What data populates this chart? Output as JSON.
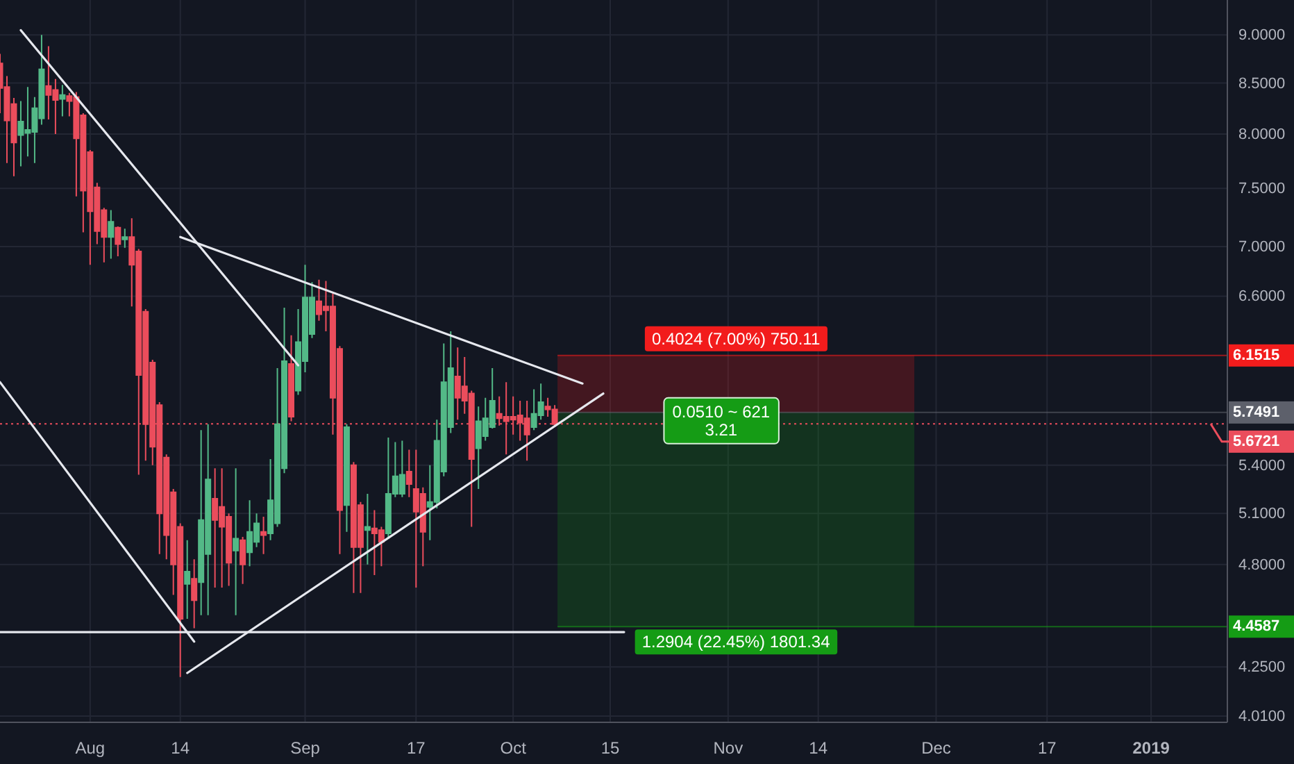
{
  "chart_data": {
    "type": "candlestick",
    "log": true,
    "grid": true,
    "xlim": [
      "2018-07-19",
      "2019-01-12"
    ],
    "xticks": [
      {
        "value": "2018-08-01",
        "label": "Aug"
      },
      {
        "value": "2018-08-14",
        "label": "14"
      },
      {
        "value": "2018-09-01",
        "label": "Sep"
      },
      {
        "value": "2018-09-17",
        "label": "17"
      },
      {
        "value": "2018-10-01",
        "label": "Oct"
      },
      {
        "value": "2018-10-15",
        "label": "15"
      },
      {
        "value": "2018-11-01",
        "label": "Nov"
      },
      {
        "value": "2018-11-14",
        "label": "14"
      },
      {
        "value": "2018-12-01",
        "label": "Dec"
      },
      {
        "value": "2018-12-17",
        "label": "17"
      },
      {
        "value": "2019-01-01",
        "label": "2019"
      }
    ],
    "ylim": [
      3.98,
      9.38
    ],
    "yticks": [
      {
        "value": 4.01,
        "label": "4.0100"
      },
      {
        "value": 4.25,
        "label": "4.2500"
      },
      {
        "value": 4.8,
        "label": "4.8000"
      },
      {
        "value": 5.1,
        "label": "5.1000"
      },
      {
        "value": 5.4,
        "label": "5.4000"
      },
      {
        "value": 6.6,
        "label": "6.6000"
      },
      {
        "value": 7,
        "label": "7.0000"
      },
      {
        "value": 7.5,
        "label": "7.5000"
      },
      {
        "value": 8,
        "label": "8.0000"
      },
      {
        "value": 8.5,
        "label": "8.5000"
      },
      {
        "value": 9,
        "label": "9.0000"
      }
    ],
    "series": [
      {
        "x": [
          "2018-07-19",
          "2018-07-20",
          "2018-07-21",
          "2018-07-22",
          "2018-07-23",
          "2018-07-24",
          "2018-07-25",
          "2018-07-26",
          "2018-07-27",
          "2018-07-28",
          "2018-07-29",
          "2018-07-30",
          "2018-07-31",
          "2018-08-01",
          "2018-08-02",
          "2018-08-03",
          "2018-08-04",
          "2018-08-05",
          "2018-08-06",
          "2018-08-07",
          "2018-08-08",
          "2018-08-09",
          "2018-08-10",
          "2018-08-11",
          "2018-08-12",
          "2018-08-13",
          "2018-08-14",
          "2018-08-15",
          "2018-08-16",
          "2018-08-17",
          "2018-08-18",
          "2018-08-19",
          "2018-08-20",
          "2018-08-21",
          "2018-08-22",
          "2018-08-23",
          "2018-08-24",
          "2018-08-25",
          "2018-08-26",
          "2018-08-27",
          "2018-08-28",
          "2018-08-29",
          "2018-08-30",
          "2018-08-31",
          "2018-09-01",
          "2018-09-02",
          "2018-09-03",
          "2018-09-04",
          "2018-09-05",
          "2018-09-06",
          "2018-09-07",
          "2018-09-08",
          "2018-09-09",
          "2018-09-10",
          "2018-09-11",
          "2018-09-12",
          "2018-09-13",
          "2018-09-14",
          "2018-09-15",
          "2018-09-16",
          "2018-09-17",
          "2018-09-18",
          "2018-09-19",
          "2018-09-20",
          "2018-09-21",
          "2018-09-22",
          "2018-09-23",
          "2018-09-24",
          "2018-09-25",
          "2018-09-26",
          "2018-09-27",
          "2018-09-28",
          "2018-09-29",
          "2018-09-30",
          "2018-10-01",
          "2018-10-02",
          "2018-10-03",
          "2018-10-04",
          "2018-10-05",
          "2018-10-06",
          "2018-10-07"
        ],
        "ohlc": [
          [
            8.7,
            8.8,
            8.2,
            8.45
          ],
          [
            8.46,
            8.57,
            7.73,
            8.13
          ],
          [
            8.29,
            8.35,
            7.61,
            7.92
          ],
          [
            7.99,
            8.32,
            7.7,
            8.12
          ],
          [
            8.01,
            8.46,
            7.79,
            8.04
          ],
          [
            8.02,
            8.36,
            7.73,
            8.25
          ],
          [
            8.15,
            9.0,
            8.09,
            8.64
          ],
          [
            8.47,
            8.88,
            8.14,
            8.38
          ],
          [
            8.43,
            8.54,
            8.0,
            8.33
          ],
          [
            8.34,
            8.48,
            8.17,
            8.38
          ],
          [
            8.37,
            8.4,
            8.17,
            8.32
          ],
          [
            8.36,
            8.41,
            7.43,
            7.96
          ],
          [
            8.18,
            8.2,
            7.12,
            7.48
          ],
          [
            7.83,
            7.85,
            6.85,
            7.3
          ],
          [
            7.51,
            7.55,
            7.02,
            7.13
          ],
          [
            7.31,
            7.33,
            6.87,
            7.08
          ],
          [
            7.08,
            7.31,
            6.9,
            7.21
          ],
          [
            7.16,
            7.17,
            6.92,
            7.02
          ],
          [
            7.06,
            7.15,
            6.99,
            7.08
          ],
          [
            7.08,
            7.24,
            6.52,
            6.85
          ],
          [
            6.96,
            6.98,
            5.34,
            6.01
          ],
          [
            6.48,
            6.5,
            5.43,
            5.67
          ],
          [
            6.1,
            6.12,
            5.4,
            5.52
          ],
          [
            5.8,
            5.82,
            4.86,
            5.1
          ],
          [
            5.45,
            5.47,
            4.83,
            4.97
          ],
          [
            5.23,
            5.25,
            4.63,
            4.8
          ],
          [
            5.02,
            5.04,
            4.2,
            4.5
          ],
          [
            4.69,
            4.94,
            4.5,
            4.76
          ],
          [
            4.72,
            4.83,
            4.45,
            4.6
          ],
          [
            4.7,
            5.63,
            4.52,
            5.06
          ],
          [
            4.86,
            5.67,
            4.52,
            5.31
          ],
          [
            5.19,
            5.38,
            4.67,
            5.06
          ],
          [
            5.14,
            5.38,
            4.67,
            5.02
          ],
          [
            5.08,
            5.1,
            4.68,
            4.81
          ],
          [
            4.88,
            5.38,
            4.52,
            4.95
          ],
          [
            4.94,
            4.96,
            4.69,
            4.8
          ],
          [
            4.87,
            5.18,
            4.79,
            4.99
          ],
          [
            4.93,
            5.1,
            4.9,
            5.04
          ],
          [
            4.99,
            5.08,
            4.86,
            4.97
          ],
          [
            4.98,
            5.44,
            4.94,
            5.18
          ],
          [
            5.04,
            6.06,
            5.02,
            5.67
          ],
          [
            5.38,
            6.51,
            5.35,
            6.11
          ],
          [
            6.09,
            6.3,
            5.69,
            5.72
          ],
          [
            5.9,
            6.5,
            5.87,
            6.25
          ],
          [
            6.11,
            6.85,
            6.03,
            6.59
          ],
          [
            6.31,
            6.71,
            6.28,
            6.59
          ],
          [
            6.56,
            6.73,
            6.41,
            6.46
          ],
          [
            6.52,
            6.72,
            6.33,
            6.49
          ],
          [
            6.52,
            6.62,
            5.6,
            5.85
          ],
          [
            6.2,
            6.22,
            4.86,
            5.12
          ],
          [
            5.15,
            5.67,
            4.99,
            5.65
          ],
          [
            5.4,
            5.42,
            4.64,
            4.9
          ],
          [
            5.15,
            5.17,
            4.64,
            4.9
          ],
          [
            5.0,
            5.22,
            4.8,
            5.02
          ],
          [
            5.01,
            5.12,
            4.74,
            4.98
          ],
          [
            5.0,
            5.02,
            4.79,
            4.93
          ],
          [
            4.98,
            5.58,
            4.95,
            5.22
          ],
          [
            5.22,
            5.55,
            5.2,
            5.33
          ],
          [
            5.22,
            5.56,
            5.2,
            5.34
          ],
          [
            5.36,
            5.5,
            5.2,
            5.28
          ],
          [
            5.25,
            5.5,
            4.67,
            5.11
          ],
          [
            5.22,
            5.26,
            4.79,
            4.99
          ],
          [
            5.14,
            5.4,
            4.94,
            5.17
          ],
          [
            5.17,
            5.7,
            5.13,
            5.56
          ],
          [
            5.36,
            6.24,
            5.33,
            5.96
          ],
          [
            5.65,
            6.33,
            5.61,
            6.06
          ],
          [
            6.0,
            6.21,
            5.7,
            5.85
          ],
          [
            5.93,
            6.14,
            5.74,
            5.83
          ],
          [
            5.88,
            5.9,
            5.02,
            5.44
          ],
          [
            5.51,
            5.79,
            5.25,
            5.69
          ],
          [
            5.59,
            5.85,
            5.56,
            5.71
          ],
          [
            5.65,
            6.06,
            5.64,
            5.83
          ],
          [
            5.74,
            5.86,
            5.66,
            5.71
          ],
          [
            5.72,
            5.96,
            5.47,
            5.69
          ],
          [
            5.72,
            5.86,
            5.6,
            5.7
          ],
          [
            5.73,
            5.83,
            5.56,
            5.68
          ],
          [
            5.71,
            5.83,
            5.43,
            5.6
          ],
          [
            5.65,
            5.91,
            5.63,
            5.74
          ],
          [
            5.73,
            5.95,
            5.7,
            5.82
          ],
          [
            5.79,
            5.85,
            5.72,
            5.77
          ],
          [
            5.77,
            5.8,
            5.65,
            5.67
          ]
        ],
        "colors": [
          "#eb4d5c",
          "#eb4d5c",
          "#eb4d5c",
          "#53b987",
          "#53b987",
          "#53b987",
          "#53b987",
          "#eb4d5c",
          "#eb4d5c",
          "#53b987",
          "#eb4d5c",
          "#eb4d5c",
          "#eb4d5c",
          "#eb4d5c",
          "#eb4d5c",
          "#eb4d5c",
          "#53b987",
          "#eb4d5c",
          "#53b987",
          "#eb4d5c",
          "#eb4d5c",
          "#eb4d5c",
          "#eb4d5c",
          "#eb4d5c",
          "#eb4d5c",
          "#eb4d5c",
          "#eb4d5c",
          "#53b987",
          "#eb4d5c",
          "#53b987",
          "#53b987",
          "#eb4d5c",
          "#eb4d5c",
          "#eb4d5c",
          "#53b987",
          "#eb4d5c",
          "#53b987",
          "#53b987",
          "#eb4d5c",
          "#53b987",
          "#53b987",
          "#53b987",
          "#eb4d5c",
          "#53b987",
          "#53b987",
          "#53b987",
          "#eb4d5c",
          "#eb4d5c",
          "#eb4d5c",
          "#eb4d5c",
          "#53b987",
          "#eb4d5c",
          "#eb4d5c",
          "#53b987",
          "#eb4d5c",
          "#eb4d5c",
          "#53b987",
          "#53b987",
          "#53b987",
          "#eb4d5c",
          "#eb4d5c",
          "#eb4d5c",
          "#53b987",
          "#53b987",
          "#53b987",
          "#53b987",
          "#eb4d5c",
          "#eb4d5c",
          "#eb4d5c",
          "#53b987",
          "#53b987",
          "#53b987",
          "#eb4d5c",
          "#eb4d5c",
          "#eb4d5c",
          "#eb4d5c",
          "#eb4d5c",
          "#53b987",
          "#53b987",
          "#eb4d5c",
          "#eb4d5c"
        ]
      },
      {
        "type": "line",
        "color": "#e6e8ee",
        "x": [
          "2018-07-22",
          "2018-08-31"
        ],
        "values": [
          9.05,
          6.08
        ]
      },
      {
        "type": "line",
        "color": "#e6e8ee",
        "x": [
          "2018-07-19",
          "2018-08-16"
        ],
        "values": [
          5.96,
          4.38
        ]
      },
      {
        "type": "line",
        "color": "#e6e8ee",
        "x": [
          "2018-07-19",
          "2018-10-17"
        ],
        "values": [
          4.43,
          4.43
        ]
      },
      {
        "type": "line",
        "color": "#e6e8ee",
        "x": [
          "2018-08-14",
          "2018-10-11"
        ],
        "values": [
          7.08,
          5.95
        ]
      },
      {
        "type": "line",
        "color": "#e6e8ee",
        "x": [
          "2018-08-15",
          "2018-10-14"
        ],
        "values": [
          4.22,
          5.88
        ]
      }
    ],
    "bands": [
      {
        "axis": "y",
        "from": 5.7491,
        "to": 6.1515,
        "color": "#f21c1c",
        "label": "0.4024 (7.00%) 750.11"
      },
      {
        "axis": "y",
        "from": 4.4587,
        "to": 5.7491,
        "color": "#159c15",
        "label": "1.2904 (22.45%) 1801.34"
      }
    ],
    "ref_lines": [
      {
        "axis": "y",
        "value": 5.6721,
        "label": "5.6721",
        "color": "#eb4d5c",
        "line_style": "dotted"
      },
      {
        "axis": "y",
        "value": 6.1515,
        "label": "6.1515",
        "color": "#f21c1c"
      },
      {
        "axis": "y",
        "value": 5.7491,
        "label": "5.7491",
        "color": "#5d606b"
      },
      {
        "axis": "y",
        "value": 4.4587,
        "label": "4.4587",
        "color": "#159c15"
      }
    ],
    "annotations": [
      {
        "text": "0.0510 ~ 621",
        "x": "2018-10-31",
        "y": 5.7491
      },
      {
        "text": "3.21",
        "x": "2018-10-31",
        "y": 5.7491
      }
    ]
  }
}
